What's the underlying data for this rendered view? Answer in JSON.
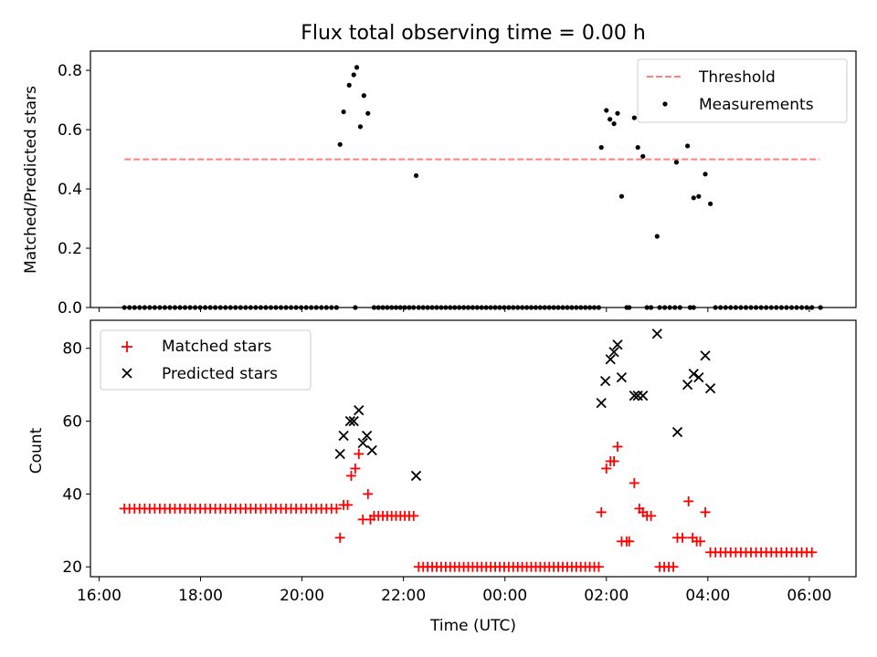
{
  "chart_data": [
    {
      "type": "scatter",
      "title": "Flux total observing time = 0.00 h",
      "xlabel": "",
      "ylabel": "Matched/Predicted stars",
      "xlim": [
        15.83,
        30.92
      ],
      "ylim": [
        0,
        0.865
      ],
      "yticks": [
        0.0,
        0.2,
        0.4,
        0.6,
        0.8
      ],
      "ytick_labels": [
        "0.0",
        "0.2",
        "0.4",
        "0.6",
        "0.8"
      ],
      "grid": false,
      "legend_position": "top-right",
      "legend": [
        "Threshold",
        "Measurements"
      ],
      "threshold": {
        "name": "Threshold",
        "value": 0.5,
        "x_range": [
          16.5,
          30.2
        ],
        "color": "#ff7f7f",
        "style": "dashed"
      },
      "measurements_series": {
        "name": "Measurements",
        "color": "#000000"
      },
      "zero_groups": [
        {
          "start": 16.5,
          "end": 20.68,
          "n": 43
        },
        {
          "start": 21.05,
          "end": 21.05,
          "n": 1
        },
        {
          "start": 21.42,
          "end": 22.2,
          "n": 10
        },
        {
          "start": 22.3,
          "end": 25.85,
          "n": 41
        },
        {
          "start": 26.4,
          "end": 26.45,
          "n": 2
        },
        {
          "start": 26.8,
          "end": 26.88,
          "n": 2
        },
        {
          "start": 27.05,
          "end": 27.45,
          "n": 5
        },
        {
          "start": 27.65,
          "end": 27.72,
          "n": 2
        },
        {
          "start": 28.15,
          "end": 30.05,
          "n": 20
        },
        {
          "start": 30.22,
          "end": 30.22,
          "n": 1
        }
      ],
      "points": [
        {
          "x": 20.75,
          "y": 0.55
        },
        {
          "x": 20.82,
          "y": 0.66
        },
        {
          "x": 20.93,
          "y": 0.75
        },
        {
          "x": 21.02,
          "y": 0.785
        },
        {
          "x": 21.08,
          "y": 0.81
        },
        {
          "x": 21.15,
          "y": 0.61
        },
        {
          "x": 21.22,
          "y": 0.715
        },
        {
          "x": 21.3,
          "y": 0.655
        },
        {
          "x": 22.25,
          "y": 0.445
        },
        {
          "x": 25.9,
          "y": 0.54
        },
        {
          "x": 26.0,
          "y": 0.665
        },
        {
          "x": 26.07,
          "y": 0.635
        },
        {
          "x": 26.15,
          "y": 0.62
        },
        {
          "x": 26.22,
          "y": 0.655
        },
        {
          "x": 26.3,
          "y": 0.375
        },
        {
          "x": 26.55,
          "y": 0.64
        },
        {
          "x": 26.62,
          "y": 0.54
        },
        {
          "x": 26.72,
          "y": 0.51
        },
        {
          "x": 27.0,
          "y": 0.24
        },
        {
          "x": 27.38,
          "y": 0.49
        },
        {
          "x": 27.6,
          "y": 0.545
        },
        {
          "x": 27.72,
          "y": 0.37
        },
        {
          "x": 27.82,
          "y": 0.375
        },
        {
          "x": 27.95,
          "y": 0.45
        },
        {
          "x": 28.05,
          "y": 0.35
        }
      ]
    },
    {
      "type": "scatter",
      "xlabel": "Time (UTC)",
      "ylabel": "Count",
      "xlim": [
        15.83,
        30.92
      ],
      "ylim": [
        17.3,
        87.7
      ],
      "xticks": [
        16,
        18,
        20,
        22,
        24,
        26,
        28,
        30
      ],
      "xtick_labels": [
        "16:00",
        "18:00",
        "20:00",
        "22:00",
        "00:00",
        "02:00",
        "04:00",
        "06:00"
      ],
      "yticks": [
        20,
        40,
        60,
        80
      ],
      "ytick_labels": [
        "20",
        "40",
        "60",
        "80"
      ],
      "grid": false,
      "legend_position": "top-left",
      "legend": [
        "Matched stars",
        "Predicted stars"
      ],
      "matched_series": {
        "name": "Matched stars",
        "color": "#ff0000",
        "marker": "+"
      },
      "predicted_series": {
        "name": "Predicted stars",
        "color": "#000000",
        "marker": "x"
      },
      "matched_groups": [
        {
          "start": 16.5,
          "end": 20.68,
          "n": 43,
          "y": 36
        },
        {
          "start": 21.42,
          "end": 22.2,
          "n": 10,
          "y": 34
        },
        {
          "start": 22.3,
          "end": 25.85,
          "n": 41,
          "y": 20
        },
        {
          "start": 26.8,
          "end": 26.88,
          "n": 2,
          "y": 34
        },
        {
          "start": 27.05,
          "end": 27.32,
          "n": 4,
          "y": 20
        },
        {
          "start": 28.05,
          "end": 30.05,
          "n": 21,
          "y": 24
        }
      ],
      "matched_points": [
        {
          "x": 20.75,
          "y": 28
        },
        {
          "x": 20.82,
          "y": 37
        },
        {
          "x": 20.9,
          "y": 37
        },
        {
          "x": 20.97,
          "y": 45
        },
        {
          "x": 21.05,
          "y": 47
        },
        {
          "x": 21.12,
          "y": 51
        },
        {
          "x": 21.2,
          "y": 33
        },
        {
          "x": 21.3,
          "y": 40
        },
        {
          "x": 21.35,
          "y": 33
        },
        {
          "x": 25.9,
          "y": 35
        },
        {
          "x": 26.0,
          "y": 47
        },
        {
          "x": 26.08,
          "y": 49
        },
        {
          "x": 26.15,
          "y": 49
        },
        {
          "x": 26.22,
          "y": 53
        },
        {
          "x": 26.3,
          "y": 27
        },
        {
          "x": 26.4,
          "y": 27
        },
        {
          "x": 26.45,
          "y": 27
        },
        {
          "x": 26.55,
          "y": 43
        },
        {
          "x": 26.65,
          "y": 36
        },
        {
          "x": 26.72,
          "y": 35
        },
        {
          "x": 27.4,
          "y": 28
        },
        {
          "x": 27.5,
          "y": 28
        },
        {
          "x": 27.62,
          "y": 38
        },
        {
          "x": 27.7,
          "y": 28
        },
        {
          "x": 27.78,
          "y": 27
        },
        {
          "x": 27.85,
          "y": 27
        },
        {
          "x": 27.95,
          "y": 35
        }
      ],
      "predicted_points": [
        {
          "x": 20.75,
          "y": 51
        },
        {
          "x": 20.82,
          "y": 56
        },
        {
          "x": 20.95,
          "y": 60
        },
        {
          "x": 21.02,
          "y": 60
        },
        {
          "x": 21.12,
          "y": 63
        },
        {
          "x": 21.2,
          "y": 54
        },
        {
          "x": 21.28,
          "y": 56
        },
        {
          "x": 21.38,
          "y": 52
        },
        {
          "x": 22.25,
          "y": 45
        },
        {
          "x": 25.9,
          "y": 65
        },
        {
          "x": 25.98,
          "y": 71
        },
        {
          "x": 26.08,
          "y": 77
        },
        {
          "x": 26.15,
          "y": 79
        },
        {
          "x": 26.22,
          "y": 81
        },
        {
          "x": 26.3,
          "y": 72
        },
        {
          "x": 26.55,
          "y": 67
        },
        {
          "x": 26.62,
          "y": 67
        },
        {
          "x": 26.72,
          "y": 67
        },
        {
          "x": 27.0,
          "y": 84
        },
        {
          "x": 27.4,
          "y": 57
        },
        {
          "x": 27.6,
          "y": 70
        },
        {
          "x": 27.72,
          "y": 73
        },
        {
          "x": 27.82,
          "y": 72
        },
        {
          "x": 27.95,
          "y": 78
        },
        {
          "x": 28.05,
          "y": 69
        }
      ]
    }
  ]
}
